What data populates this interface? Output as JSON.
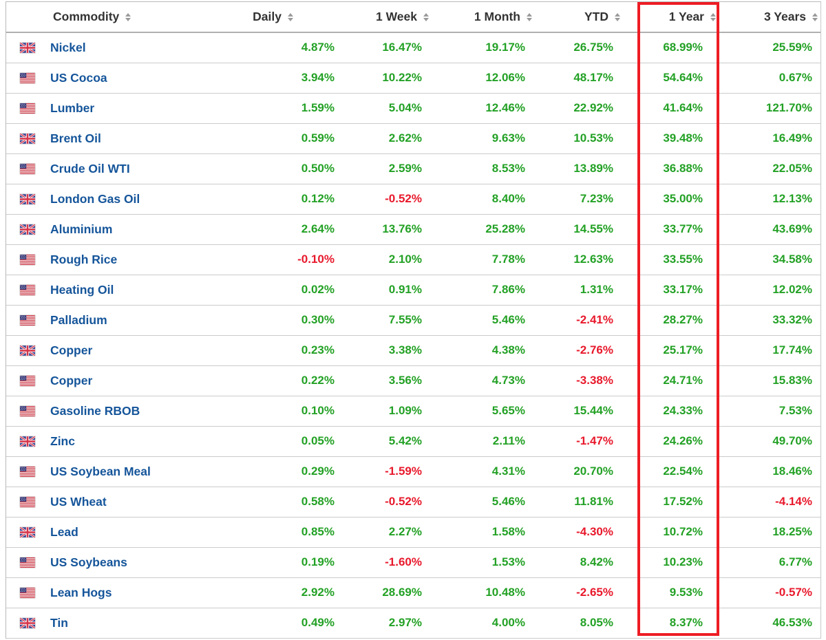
{
  "colors": {
    "positive": "#23a125",
    "negative": "#e8192c",
    "commodity_link": "#15559a",
    "highlight_box": "#ee1c24",
    "header_text": "#333333",
    "sort_icon": "#9a9a9a"
  },
  "table": {
    "highlighted_column": "1 Year",
    "columns": [
      {
        "label": "Commodity",
        "sortable": true
      },
      {
        "label": "Daily",
        "sortable": true
      },
      {
        "label": "1 Week",
        "sortable": true
      },
      {
        "label": "1 Month",
        "sortable": true
      },
      {
        "label": "YTD",
        "sortable": true
      },
      {
        "label": "1 Year",
        "sortable": true,
        "highlighted": true
      },
      {
        "label": "3 Years",
        "sortable": true
      }
    ],
    "rows": [
      {
        "flag": "uk",
        "name": "Nickel",
        "values": [
          "4.87%",
          "16.47%",
          "19.17%",
          "26.75%",
          "68.99%",
          "25.59%"
        ]
      },
      {
        "flag": "us",
        "name": "US Cocoa",
        "values": [
          "3.94%",
          "10.22%",
          "12.06%",
          "48.17%",
          "54.64%",
          "0.67%"
        ]
      },
      {
        "flag": "us",
        "name": "Lumber",
        "values": [
          "1.59%",
          "5.04%",
          "12.46%",
          "22.92%",
          "41.64%",
          "121.70%"
        ]
      },
      {
        "flag": "uk",
        "name": "Brent Oil",
        "values": [
          "0.59%",
          "2.62%",
          "9.63%",
          "10.53%",
          "39.48%",
          "16.49%"
        ]
      },
      {
        "flag": "us",
        "name": "Crude Oil WTI",
        "values": [
          "0.50%",
          "2.59%",
          "8.53%",
          "13.89%",
          "36.88%",
          "22.05%"
        ]
      },
      {
        "flag": "uk",
        "name": "London Gas Oil",
        "values": [
          "0.12%",
          "-0.52%",
          "8.40%",
          "7.23%",
          "35.00%",
          "12.13%"
        ]
      },
      {
        "flag": "uk",
        "name": "Aluminium",
        "values": [
          "2.64%",
          "13.76%",
          "25.28%",
          "14.55%",
          "33.77%",
          "43.69%"
        ]
      },
      {
        "flag": "us",
        "name": "Rough Rice",
        "values": [
          "-0.10%",
          "2.10%",
          "7.78%",
          "12.63%",
          "33.55%",
          "34.58%"
        ]
      },
      {
        "flag": "us",
        "name": "Heating Oil",
        "values": [
          "0.02%",
          "0.91%",
          "7.86%",
          "1.31%",
          "33.17%",
          "12.02%"
        ]
      },
      {
        "flag": "us",
        "name": "Palladium",
        "values": [
          "0.30%",
          "7.55%",
          "5.46%",
          "-2.41%",
          "28.27%",
          "33.32%"
        ]
      },
      {
        "flag": "uk",
        "name": "Copper",
        "values": [
          "0.23%",
          "3.38%",
          "4.38%",
          "-2.76%",
          "25.17%",
          "17.74%"
        ]
      },
      {
        "flag": "us",
        "name": "Copper",
        "values": [
          "0.22%",
          "3.56%",
          "4.73%",
          "-3.38%",
          "24.71%",
          "15.83%"
        ]
      },
      {
        "flag": "us",
        "name": "Gasoline RBOB",
        "values": [
          "0.10%",
          "1.09%",
          "5.65%",
          "15.44%",
          "24.33%",
          "7.53%"
        ]
      },
      {
        "flag": "uk",
        "name": "Zinc",
        "values": [
          "0.05%",
          "5.42%",
          "2.11%",
          "-1.47%",
          "24.26%",
          "49.70%"
        ]
      },
      {
        "flag": "us",
        "name": "US Soybean Meal",
        "values": [
          "0.29%",
          "-1.59%",
          "4.31%",
          "20.70%",
          "22.54%",
          "18.46%"
        ]
      },
      {
        "flag": "us",
        "name": "US Wheat",
        "values": [
          "0.58%",
          "-0.52%",
          "5.46%",
          "11.81%",
          "17.52%",
          "-4.14%"
        ]
      },
      {
        "flag": "uk",
        "name": "Lead",
        "values": [
          "0.85%",
          "2.27%",
          "1.58%",
          "-4.30%",
          "10.72%",
          "18.25%"
        ]
      },
      {
        "flag": "us",
        "name": "US Soybeans",
        "values": [
          "0.19%",
          "-1.60%",
          "1.53%",
          "8.42%",
          "10.23%",
          "6.77%"
        ]
      },
      {
        "flag": "us",
        "name": "Lean Hogs",
        "values": [
          "2.92%",
          "28.69%",
          "10.48%",
          "-2.65%",
          "9.53%",
          "-0.57%"
        ]
      },
      {
        "flag": "uk",
        "name": "Tin",
        "values": [
          "0.49%",
          "2.97%",
          "4.00%",
          "8.05%",
          "8.37%",
          "46.53%"
        ]
      }
    ]
  }
}
